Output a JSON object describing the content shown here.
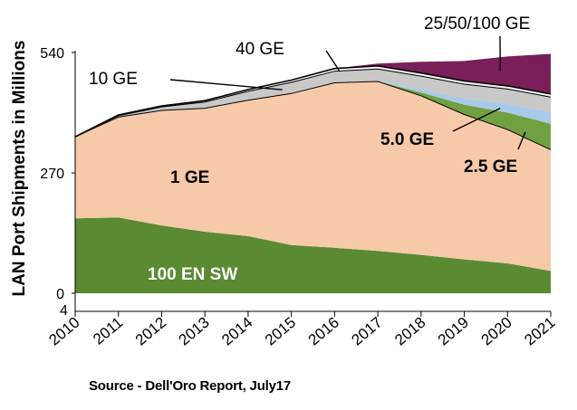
{
  "chart_data": {
    "type": "area",
    "ylabel": "LAN Port Shipments in Millions",
    "ylim": [
      0,
      540
    ],
    "yticks": [
      0,
      270,
      540
    ],
    "ytick_labels": [
      "0",
      "270",
      "540"
    ],
    "x": [
      "2010",
      "2011",
      "2012",
      "2013",
      "2014",
      "2015",
      "2016",
      "2017",
      "2018",
      "2019",
      "2020",
      "2021"
    ],
    "stacked": true,
    "grid": false,
    "series": [
      {
        "name": "100 EN SW",
        "color": "#5a8a32",
        "values": [
          168,
          170,
          152,
          138,
          128,
          108,
          102,
          95,
          86,
          76,
          67,
          50
        ]
      },
      {
        "name": "1 GE",
        "color": "#f6c9a8",
        "values": [
          183,
          225,
          258,
          277,
          305,
          340,
          370,
          380,
          357,
          325,
          300,
          272
        ]
      },
      {
        "name": "2.5 GE",
        "color": "#70a040",
        "values": [
          0,
          0,
          0,
          0,
          0,
          0,
          0,
          0,
          7,
          22,
          38,
          58
        ]
      },
      {
        "name": "5.0 GE",
        "color": "#a9c9e8",
        "values": [
          0,
          0,
          0,
          0,
          0,
          0,
          0,
          0,
          7,
          14,
          20,
          26
        ]
      },
      {
        "name": "10 GE",
        "color": "#c8c8c8",
        "values": [
          0,
          3,
          8,
          14,
          20,
          25,
          26,
          28,
          30,
          32,
          33,
          34
        ]
      },
      {
        "name": "40 GE",
        "color": "#f5f5f5",
        "values": [
          0,
          2,
          2,
          3,
          4,
          5,
          6,
          7,
          7,
          7,
          7,
          7
        ]
      },
      {
        "name": "25/50/100 GE",
        "color": "#7b1f5a",
        "values": [
          0,
          0,
          0,
          0,
          0,
          0,
          0,
          5,
          25,
          45,
          66,
          90
        ]
      }
    ],
    "annotations": [
      {
        "text": "100 EN SW"
      },
      {
        "text": "1 GE"
      },
      {
        "text": "10 GE"
      },
      {
        "text": "40 GE"
      },
      {
        "text": "25/50/100 GE"
      },
      {
        "text": "5.0 GE"
      },
      {
        "text": "2.5 GE"
      }
    ]
  },
  "source_note": "Source -  Dell'Oro Report, July17",
  "stray_tick": "4"
}
